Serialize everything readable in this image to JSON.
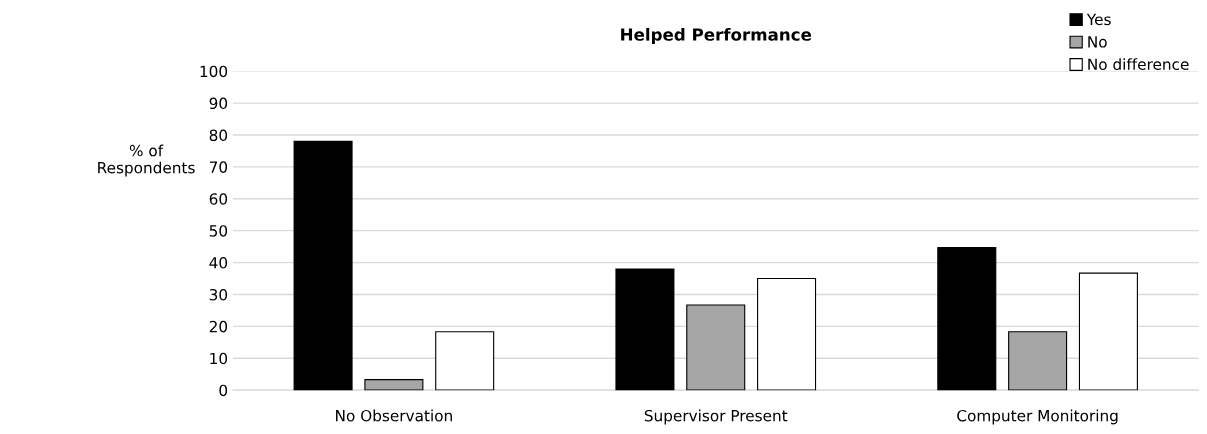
{
  "chart_data": {
    "type": "bar",
    "title": "Helped Performance",
    "ylabel": "% of\nRespondents",
    "categories": [
      "No Observation",
      "Supervisor Present",
      "Computer Monitoring"
    ],
    "series": [
      {
        "name": "Yes",
        "color": "#000000",
        "values": [
          78,
          38,
          44.7
        ]
      },
      {
        "name": "No",
        "color": "#a6a6a6",
        "values": [
          3.3,
          26.7,
          18.3
        ]
      },
      {
        "name": "No difference",
        "color": "#ffffff",
        "values": [
          18.3,
          35,
          36.7
        ]
      }
    ],
    "ylim": [
      0,
      100
    ],
    "yticks": [
      0,
      10,
      20,
      30,
      40,
      50,
      60,
      70,
      80,
      90,
      100
    ],
    "grid": "y",
    "legend": "top right"
  }
}
